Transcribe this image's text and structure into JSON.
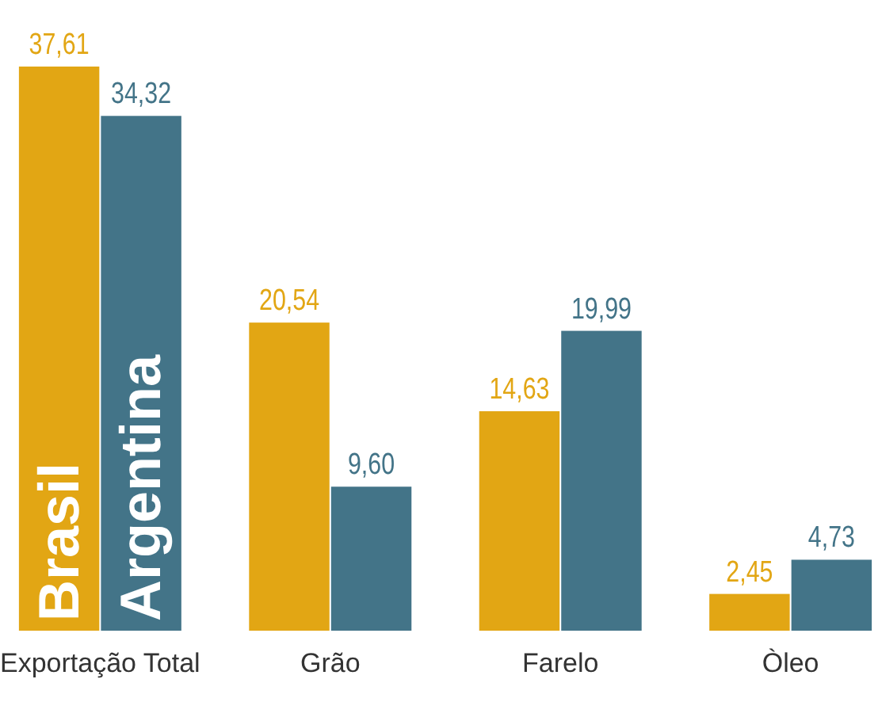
{
  "chart_data": {
    "type": "bar",
    "categories": [
      "Exportação Total",
      "Grão",
      "Farelo",
      "Òleo"
    ],
    "series": [
      {
        "name": "Brasil",
        "color": "#e2a614",
        "values": [
          37.61,
          20.54,
          14.63,
          2.45
        ],
        "value_labels": [
          "37,61",
          "20,54",
          "14,63",
          "2,45"
        ]
      },
      {
        "name": "Argentina",
        "color": "#437488",
        "values": [
          34.32,
          9.6,
          19.99,
          4.73
        ],
        "value_labels": [
          "34,32",
          "9,60",
          "19,99",
          "4,73"
        ]
      }
    ]
  }
}
